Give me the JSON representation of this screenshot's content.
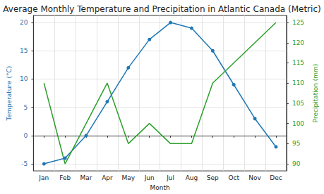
{
  "chart_data": {
    "type": "line",
    "title": "Average Monthly Temperature and Precipitation in Atlantic Canada (Metric)",
    "x_label": "Month",
    "y_label": "Temperature (°C)",
    "y2_label": "Precipitation (mm)",
    "categories": [
      "Jan",
      "Feb",
      "Mar",
      "Apr",
      "May",
      "Jun",
      "Jul",
      "Aug",
      "Sep",
      "Oct",
      "Nov",
      "Dec"
    ],
    "series": [
      {
        "name": "Temperature (°C)",
        "color": "#1f77b4",
        "marker": "circle",
        "line_style": "solid",
        "values": [
          -5,
          -4,
          0,
          6,
          12,
          17,
          20,
          19,
          15,
          9,
          3,
          -2
        ]
      },
      {
        "name": "Precipitation (mm)",
        "color": "#2ca02c",
        "marker": "none",
        "line_style": "solid",
        "axis": "y2",
        "values": [
          110,
          90,
          100,
          110,
          95,
          100,
          95,
          95,
          110,
          115,
          120,
          125
        ]
      }
    ],
    "ylim": [
      -6.25,
      21.25
    ],
    "yticks": [
      -5,
      0,
      5,
      10,
      15,
      20
    ],
    "y2lim": [
      88.25,
      126.75
    ],
    "y2ticks": [
      90,
      95,
      100,
      105,
      110,
      115,
      120,
      125
    ],
    "grid": true
  }
}
